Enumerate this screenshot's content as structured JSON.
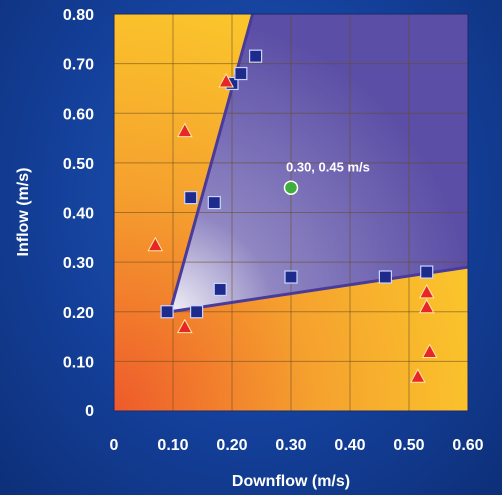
{
  "chart_data": {
    "type": "scatter",
    "xlabel": "Downflow (m/s)",
    "ylabel": "Inflow (m/s)",
    "xlim": [
      0,
      0.6
    ],
    "ylim": [
      0,
      0.8
    ],
    "x_ticks": [
      "0",
      "0.10",
      "0.20",
      "0.30",
      "0.40",
      "0.50",
      "0.60"
    ],
    "y_ticks": [
      "0",
      "0.10",
      "0.20",
      "0.30",
      "0.40",
      "0.50",
      "0.60",
      "0.70",
      "0.80"
    ],
    "grid": true,
    "colors": {
      "square": "#1e2a8c",
      "triangle": "#e8262a",
      "circle": "#3fae3f",
      "region": "#5b4ea6",
      "background_hot": "#ee5a2b",
      "background_warm": "#fdd42a"
    },
    "region": {
      "vertex": [
        0.095,
        0.2
      ],
      "upper_boundary_end": [
        0.235,
        0.8
      ],
      "lower_boundary_end": [
        0.6,
        0.29
      ]
    },
    "series": [
      {
        "marker": "square",
        "points": [
          [
            0.09,
            0.2
          ],
          [
            0.14,
            0.2
          ],
          [
            0.18,
            0.245
          ],
          [
            0.13,
            0.43
          ],
          [
            0.17,
            0.42
          ],
          [
            0.2,
            0.66
          ],
          [
            0.215,
            0.68
          ],
          [
            0.24,
            0.715
          ],
          [
            0.3,
            0.27
          ],
          [
            0.46,
            0.27
          ],
          [
            0.53,
            0.28
          ]
        ]
      },
      {
        "marker": "triangle",
        "points": [
          [
            0.07,
            0.335
          ],
          [
            0.12,
            0.17
          ],
          [
            0.12,
            0.565
          ],
          [
            0.19,
            0.665
          ],
          [
            0.53,
            0.24
          ],
          [
            0.53,
            0.21
          ],
          [
            0.535,
            0.12
          ],
          [
            0.515,
            0.07
          ]
        ]
      },
      {
        "marker": "circle",
        "points": [
          [
            0.3,
            0.45
          ]
        ]
      }
    ],
    "annotations": [
      {
        "text": "0.30, 0.45 m/s",
        "x": 0.3,
        "y": 0.45
      }
    ]
  }
}
